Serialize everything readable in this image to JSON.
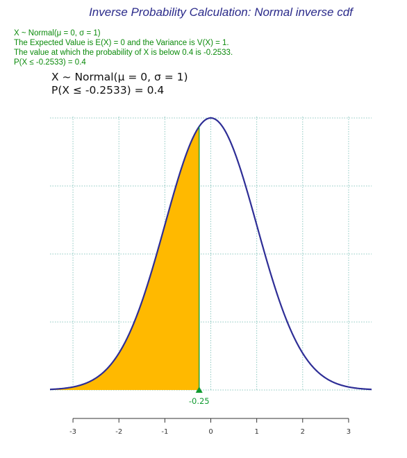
{
  "title": "Inverse Probability Calculation: Normal inverse cdf",
  "info_lines": [
    "X ~ Normal(μ = 0, σ = 1)",
    "The Expected Value is E(X) = 0 and the Variance is V(X) = 1.",
    "The value at which the probability of X is below 0.4 is -0.2533.",
    "P(X ≤ -0.2533) = 0.4"
  ],
  "plot_header": {
    "line1": "X ~ Normal(μ = 0, σ = 1)",
    "line2": "P(X ≤ -0.2533) = 0.4"
  },
  "colors": {
    "curve": "#2e2e96",
    "shade": "#ffb900",
    "marker": "#0f9a2f",
    "grid": "#8cc8c0",
    "title": "#2a2a8a",
    "info": "#0a8a0a"
  },
  "chart_data": {
    "type": "area",
    "distribution": "normal",
    "mean": 0,
    "sd": 1,
    "quantile": -0.2533,
    "probability": 0.4,
    "shaded_region": "below quantile",
    "marker_label": "-0.25",
    "xlim": [
      -3.5,
      3.5
    ],
    "ylim": [
      0,
      0.4
    ],
    "x_ticks": [
      -3,
      -2,
      -1,
      0,
      1,
      2,
      3
    ],
    "x_tick_labels": [
      "-3",
      "-2",
      "-1",
      "0",
      "1",
      "2",
      "3"
    ],
    "grid": true,
    "xlabel": "",
    "ylabel": ""
  }
}
